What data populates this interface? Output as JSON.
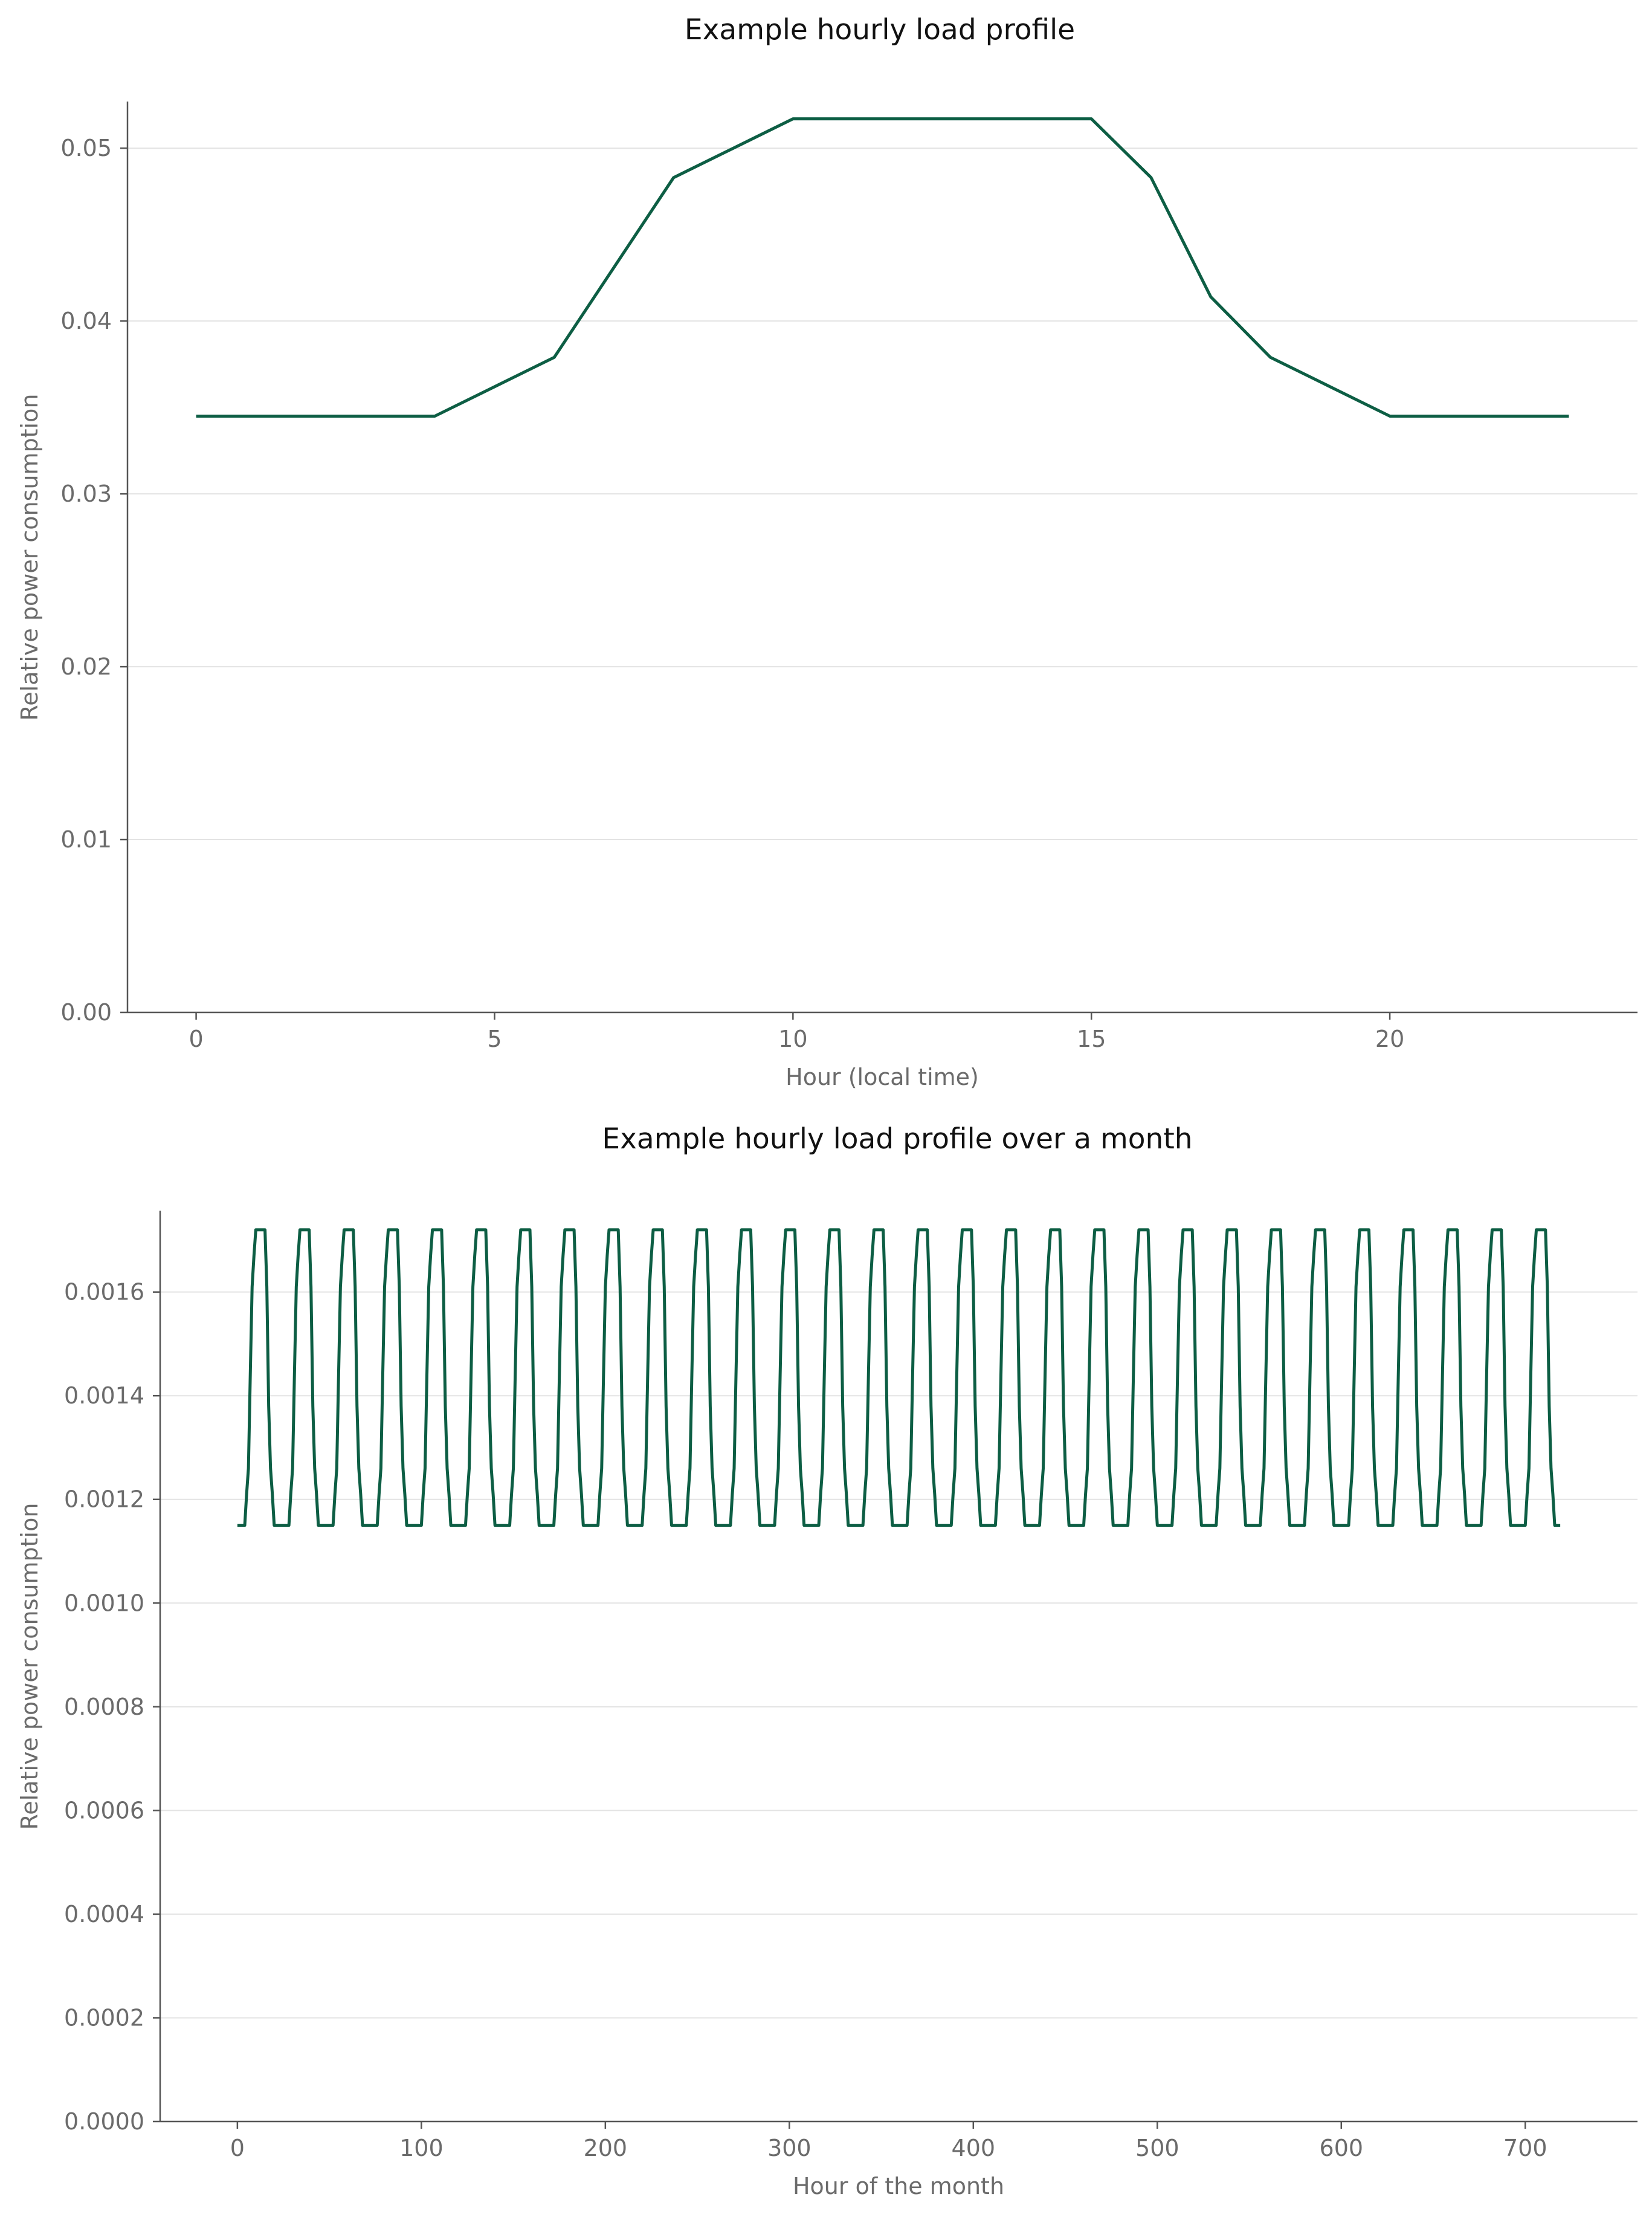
{
  "colors": {
    "series": "#0d5e44",
    "grid": "#e3e3e3",
    "axis": "#555555",
    "text": "#6b6b6b"
  },
  "chart_data": [
    {
      "type": "line",
      "title": "Example hourly load profile",
      "xlabel": "Hour (local time)",
      "ylabel": "Relative power consumption",
      "grid": "horizontal",
      "xlim": [
        -1.15,
        24.15
      ],
      "ylim": [
        0,
        0.0527
      ],
      "xticks": [
        0,
        5,
        10,
        15,
        20
      ],
      "xtick_labels": [
        "0",
        "5",
        "10",
        "15",
        "20"
      ],
      "yticks": [
        0,
        0.01,
        0.02,
        0.03,
        0.04,
        0.05
      ],
      "ytick_labels": [
        "0.00",
        "0.01",
        "0.02",
        "0.03",
        "0.04",
        "0.05"
      ],
      "x": [
        0,
        1,
        2,
        3,
        4,
        5,
        6,
        7,
        8,
        9,
        10,
        11,
        12,
        13,
        14,
        15,
        16,
        17,
        18,
        19,
        20,
        21,
        22,
        23
      ],
      "series": [
        {
          "values": [
            0.0345,
            0.0345,
            0.0345,
            0.0345,
            0.0345,
            0.0362,
            0.0379,
            0.0431,
            0.0483,
            0.05,
            0.0517,
            0.0517,
            0.0517,
            0.0517,
            0.0517,
            0.0517,
            0.0483,
            0.0414,
            0.0379,
            0.0362,
            0.0345,
            0.0345,
            0.0345,
            0.0345
          ]
        }
      ]
    },
    {
      "type": "line",
      "title": "Example hourly load profile over a month",
      "xlabel": "Hour of the month",
      "ylabel": "Relative power consumption",
      "grid": "horizontal",
      "xlim": [
        -42,
        761
      ],
      "ylim": [
        0,
        0.001757
      ],
      "xticks": [
        0,
        100,
        200,
        300,
        400,
        500,
        600,
        700
      ],
      "xtick_labels": [
        "0",
        "100",
        "200",
        "300",
        "400",
        "500",
        "600",
        "700"
      ],
      "yticks": [
        0,
        0.0002,
        0.0004,
        0.0006,
        0.0008,
        0.001,
        0.0012,
        0.0014,
        0.0016
      ],
      "ytick_labels": [
        "0.0000",
        "0.0002",
        "0.0004",
        "0.0006",
        "0.0008",
        "0.0010",
        "0.0012",
        "0.0014",
        "0.0016"
      ],
      "days": 30,
      "hours_per_day": 24,
      "series": [
        {
          "daily_profile": [
            0.00115,
            0.00115,
            0.00115,
            0.00115,
            0.00115,
            0.00121,
            0.00126,
            0.00144,
            0.00161,
            0.00167,
            0.00172,
            0.00172,
            0.00172,
            0.00172,
            0.00172,
            0.00172,
            0.00161,
            0.00138,
            0.00126,
            0.00121,
            0.00115,
            0.00115,
            0.00115,
            0.00115
          ]
        }
      ]
    }
  ]
}
